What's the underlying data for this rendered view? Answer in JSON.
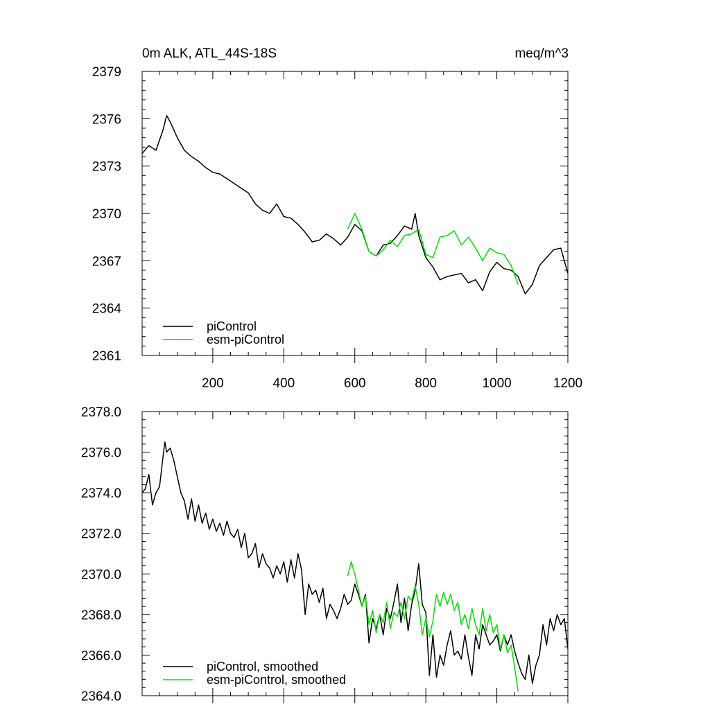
{
  "header": {
    "title_left": "0m ALK, ATL_44S-18S",
    "title_right": "meq/m^3"
  },
  "colors": {
    "piControl": "#000000",
    "esm_piControl": "#00e000"
  },
  "chart_data": [
    {
      "type": "line",
      "title": "0m ALK, ATL_44S-18S",
      "units": "meq/m^3",
      "xlim": [
        1,
        1200
      ],
      "ylim": [
        2361,
        2379
      ],
      "xticks": [
        200,
        400,
        600,
        800,
        1000,
        1200
      ],
      "xtick_labels": [
        "200",
        "400",
        "600",
        "800",
        "1000",
        "1200"
      ],
      "yticks": [
        2361,
        2364,
        2367,
        2370,
        2373,
        2376,
        2379
      ],
      "ytick_labels": [
        "2361",
        "2364",
        "2367",
        "2370",
        "2373",
        "2376",
        "2379"
      ],
      "legend": "bottom-left",
      "grid": false,
      "series": [
        {
          "name": "piControl",
          "color": "#000000",
          "x": [
            1,
            20,
            40,
            60,
            70,
            80,
            100,
            120,
            140,
            160,
            180,
            200,
            220,
            240,
            260,
            280,
            300,
            320,
            340,
            360,
            380,
            400,
            420,
            440,
            460,
            480,
            500,
            520,
            540,
            560,
            580,
            600,
            620,
            640,
            660,
            680,
            700,
            720,
            740,
            760,
            770,
            780,
            800,
            820,
            840,
            860,
            880,
            900,
            920,
            940,
            960,
            980,
            1000,
            1020,
            1040,
            1060,
            1080,
            1100,
            1120,
            1140,
            1160,
            1180,
            1200
          ],
          "y": [
            2373.8,
            2374.3,
            2374.0,
            2375.3,
            2376.2,
            2375.8,
            2374.8,
            2374.0,
            2373.6,
            2373.3,
            2372.9,
            2372.6,
            2372.5,
            2372.2,
            2371.9,
            2371.6,
            2371.3,
            2370.6,
            2370.2,
            2370.0,
            2370.6,
            2369.8,
            2369.7,
            2369.3,
            2368.8,
            2368.2,
            2368.3,
            2368.7,
            2368.4,
            2368.0,
            2368.5,
            2369.3,
            2368.9,
            2367.6,
            2367.3,
            2368.0,
            2368.1,
            2368.6,
            2369.2,
            2369.0,
            2370.0,
            2368.6,
            2367.2,
            2366.6,
            2365.8,
            2366.0,
            2366.1,
            2366.2,
            2365.6,
            2365.8,
            2365.1,
            2366.3,
            2366.9,
            2366.5,
            2366.4,
            2366.0,
            2364.9,
            2365.5,
            2366.7,
            2367.2,
            2367.7,
            2367.8,
            2366.2
          ]
        },
        {
          "name": "esm-piControl",
          "color": "#00e000",
          "x": [
            580,
            600,
            620,
            640,
            660,
            680,
            700,
            720,
            740,
            760,
            780,
            800,
            820,
            840,
            860,
            880,
            900,
            920,
            940,
            960,
            980,
            1000,
            1020,
            1040,
            1060
          ],
          "y": [
            2369.0,
            2370.0,
            2369.0,
            2367.6,
            2367.3,
            2367.7,
            2368.3,
            2367.9,
            2368.6,
            2368.7,
            2369.0,
            2367.4,
            2367.2,
            2368.5,
            2368.6,
            2368.9,
            2368.0,
            2368.5,
            2367.8,
            2367.0,
            2367.8,
            2367.5,
            2367.4,
            2366.7,
            2365.5
          ]
        }
      ]
    },
    {
      "type": "line",
      "xlim": [
        1,
        1200
      ],
      "ylim": [
        2364.0,
        2378.0
      ],
      "xticks": [
        200,
        400,
        600,
        800,
        1000,
        1200
      ],
      "yticks": [
        2364.0,
        2366.0,
        2368.0,
        2370.0,
        2372.0,
        2374.0,
        2376.0,
        2378.0
      ],
      "ytick_labels": [
        "2364.0",
        "2366.0",
        "2368.0",
        "2370.0",
        "2372.0",
        "2374.0",
        "2376.0",
        "2378.0"
      ],
      "legend": "bottom-left",
      "grid": false,
      "series": [
        {
          "name": "piControl, smoothed",
          "color": "#000000",
          "x": [
            1,
            10,
            20,
            30,
            40,
            50,
            60,
            65,
            70,
            80,
            90,
            100,
            110,
            120,
            130,
            140,
            150,
            160,
            170,
            180,
            190,
            200,
            210,
            220,
            230,
            240,
            250,
            260,
            270,
            280,
            290,
            300,
            310,
            320,
            330,
            340,
            350,
            360,
            370,
            380,
            390,
            400,
            410,
            420,
            430,
            440,
            450,
            460,
            470,
            480,
            490,
            500,
            510,
            520,
            530,
            540,
            550,
            560,
            570,
            580,
            590,
            600,
            610,
            620,
            630,
            640,
            650,
            660,
            670,
            680,
            690,
            700,
            710,
            720,
            730,
            740,
            750,
            760,
            770,
            780,
            790,
            800,
            810,
            820,
            830,
            840,
            850,
            860,
            870,
            880,
            890,
            900,
            910,
            920,
            930,
            940,
            950,
            960,
            970,
            980,
            990,
            1000,
            1010,
            1020,
            1030,
            1040,
            1050,
            1060,
            1070,
            1080,
            1090,
            1100,
            1110,
            1120,
            1130,
            1140,
            1150,
            1160,
            1170,
            1180,
            1190,
            1200
          ],
          "y": [
            2374.0,
            2374.2,
            2374.9,
            2373.4,
            2374.0,
            2374.3,
            2375.8,
            2376.5,
            2376.0,
            2376.2,
            2375.6,
            2374.8,
            2374.0,
            2373.6,
            2372.7,
            2373.7,
            2372.6,
            2373.4,
            2372.5,
            2373.0,
            2372.2,
            2372.7,
            2372.1,
            2372.5,
            2371.9,
            2372.6,
            2372.0,
            2371.8,
            2372.2,
            2371.3,
            2372.0,
            2370.8,
            2371.0,
            2371.5,
            2370.3,
            2371.0,
            2370.5,
            2370.3,
            2369.8,
            2370.4,
            2370.0,
            2370.6,
            2369.6,
            2370.7,
            2369.8,
            2371.0,
            2370.2,
            2368.0,
            2369.5,
            2369.0,
            2369.2,
            2368.6,
            2369.3,
            2367.8,
            2368.5,
            2368.2,
            2367.8,
            2368.3,
            2369.0,
            2368.5,
            2368.7,
            2369.5,
            2369.0,
            2368.4,
            2369.0,
            2366.6,
            2367.8,
            2367.3,
            2368.0,
            2367.0,
            2368.3,
            2367.8,
            2368.6,
            2369.5,
            2367.6,
            2368.8,
            2367.2,
            2368.5,
            2369.2,
            2370.5,
            2368.5,
            2368.1,
            2365.0,
            2367.0,
            2364.9,
            2366.0,
            2365.5,
            2366.5,
            2367.2,
            2366.0,
            2366.2,
            2365.8,
            2367.0,
            2365.9,
            2365.0,
            2367.0,
            2366.3,
            2367.5,
            2367.0,
            2366.5,
            2366.7,
            2367.0,
            2366.2,
            2367.0,
            2366.5,
            2367.0,
            2366.2,
            2365.6,
            2365.1,
            2364.8,
            2366.0,
            2364.6,
            2365.5,
            2366.0,
            2367.5,
            2366.5,
            2367.8,
            2367.2,
            2368.0,
            2367.5,
            2367.8,
            2366.3
          ]
        },
        {
          "name": "esm-piControl, smoothed",
          "color": "#00e000",
          "x": [
            580,
            590,
            600,
            610,
            620,
            630,
            640,
            650,
            660,
            670,
            680,
            690,
            700,
            710,
            720,
            730,
            740,
            750,
            760,
            770,
            780,
            790,
            800,
            810,
            820,
            830,
            840,
            850,
            860,
            870,
            880,
            890,
            900,
            910,
            920,
            930,
            940,
            950,
            960,
            970,
            980,
            990,
            1000,
            1010,
            1020,
            1030,
            1040,
            1050,
            1060
          ],
          "y": [
            2369.9,
            2370.6,
            2370.0,
            2369.2,
            2368.4,
            2368.9,
            2367.5,
            2368.2,
            2367.1,
            2368.0,
            2367.6,
            2368.6,
            2367.3,
            2368.1,
            2367.9,
            2368.6,
            2367.8,
            2368.9,
            2368.7,
            2369.4,
            2368.5,
            2367.0,
            2367.8,
            2366.9,
            2367.7,
            2369.0,
            2368.4,
            2369.1,
            2368.5,
            2369.0,
            2368.2,
            2368.6,
            2367.5,
            2368.0,
            2367.3,
            2368.3,
            2367.5,
            2367.0,
            2368.3,
            2367.2,
            2368.0,
            2367.1,
            2367.5,
            2366.3,
            2367.0,
            2366.1,
            2366.5,
            2365.4,
            2364.2
          ]
        }
      ]
    }
  ]
}
